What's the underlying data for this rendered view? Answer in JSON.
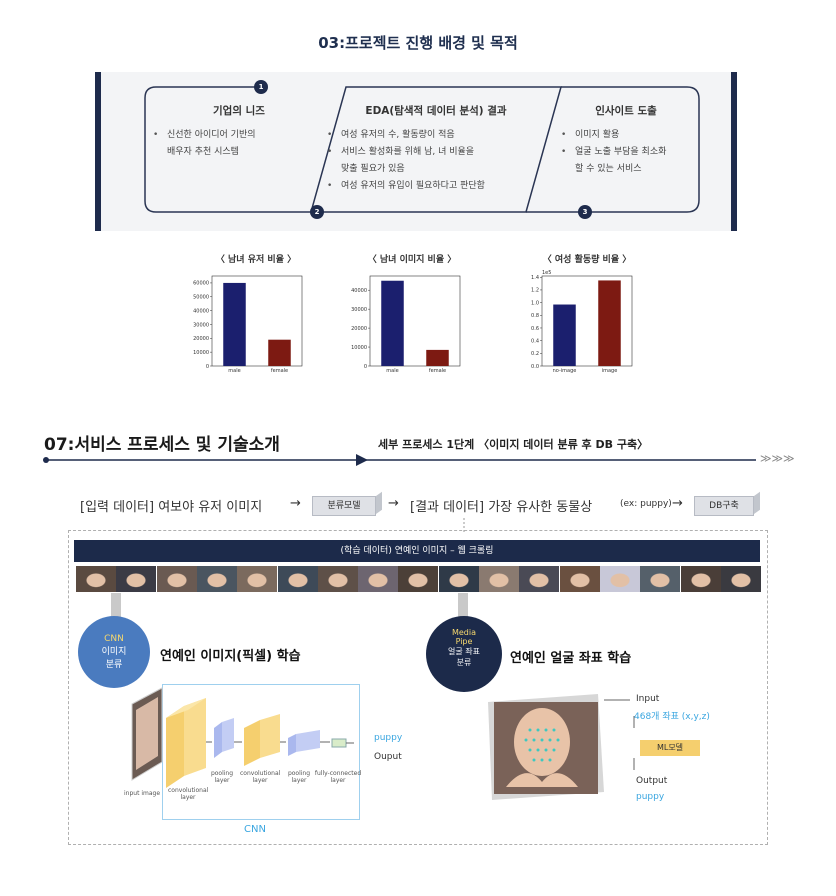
{
  "top_title": "03:프로젝트 진행 배경 및 목적",
  "banner": {
    "steps": [
      {
        "number": "1",
        "title": "기업의 니즈",
        "bullets": [
          "신선한 아이디어 기반의\n배우자 추천 시스템"
        ]
      },
      {
        "number": "2",
        "title": "EDA(탐색적 데이터 분석) 결과",
        "bullets": [
          "여성 유저의 수, 활동량이 적음",
          "서비스 활성화를 위해 남, 녀 비율을\n맞출 필요가 있음",
          "여성 유저의 유입이 필요하다고 판단함"
        ]
      },
      {
        "number": "3",
        "title": "인사이트 도출",
        "bullets": [
          "이미지 활용",
          "얼굴 노출 부담을 최소화\n할 수 있는 서비스"
        ]
      }
    ]
  },
  "chart_data": [
    {
      "type": "bar",
      "title": "〈 남녀 유저 비율 〉",
      "categories": [
        "male",
        "female"
      ],
      "values": [
        60000,
        19000
      ],
      "ylim": [
        0,
        65000
      ],
      "yticks": [
        "0",
        "10000",
        "20000",
        "30000",
        "40000",
        "50000",
        "60000"
      ],
      "ytick_values": [
        0,
        10000,
        20000,
        30000,
        40000,
        50000,
        60000
      ],
      "colors": [
        "#1b1f6e",
        "#7d1a12"
      ]
    },
    {
      "type": "bar",
      "title": "〈 남녀 이미지 비율 〉",
      "categories": [
        "male",
        "female"
      ],
      "values": [
        45000,
        8500
      ],
      "ylim": [
        0,
        47500
      ],
      "yticks": [
        "0",
        "10000",
        "20000",
        "30000",
        "40000"
      ],
      "ytick_values": [
        0,
        10000,
        20000,
        30000,
        40000
      ],
      "colors": [
        "#1b1f6e",
        "#7d1a12"
      ]
    },
    {
      "type": "bar",
      "title": "〈 여성 활동량 비율 〉",
      "categories": [
        "no-image",
        "image"
      ],
      "values": [
        0.97,
        1.35
      ],
      "ylim": [
        0,
        1.42
      ],
      "yticks": [
        "0.0",
        "0.2",
        "0.4",
        "0.6",
        "0.8",
        "1.0",
        "1.2",
        "1.4"
      ],
      "ytick_values": [
        0,
        0.2,
        0.4,
        0.6,
        0.8,
        1.0,
        1.2,
        1.4
      ],
      "offset_label": "1e5",
      "colors": [
        "#1b1f6e",
        "#7d1a12"
      ]
    }
  ],
  "process": {
    "title": "07:서비스 프로세스 및 기술소개",
    "subtitle": "세부 프로세스 1단계 〈이미지 데이터 분류 후 DB 구축〉",
    "arrow_end": "≫≫≫",
    "flow": {
      "input": "[입력 데이터] 여보야 유저 이미지",
      "arrow1": "→",
      "classifier_box": "분류모델",
      "arrow2": "→",
      "output": "[결과 데이터] 가장 유사한 동물상",
      "output_example": "(ex: puppy)",
      "arrow3": "→",
      "db_box": "DB구축"
    },
    "training_bar": "(학습 데이터) 연예인 이미지 – 웹 크롤링",
    "cnn_circle": {
      "line1": "CNN",
      "line2": "이미지",
      "line3": "분류"
    },
    "cnn_heading": "연예인 이미지(픽셀) 학습",
    "mp_circle": {
      "line1": "Media",
      "line2": "Pipe",
      "line3": "얼굴 좌표",
      "line4": "분류"
    },
    "mp_heading": "연예인 얼굴 좌표 학습",
    "cnn_diagram": {
      "input_label": "input image",
      "layers": [
        "convolutional\nlayer",
        "pooling\nlayer",
        "convolutional\nlayer",
        "pooling\nlayer",
        "fully-connected\nlayer"
      ],
      "puppy": "puppy",
      "output": "Ouput",
      "caption": "CNN"
    },
    "mp_diagram": {
      "input_label": "Input",
      "coords": "468개 좌표 (x,y,z)",
      "model_box": "ML모델",
      "output_label": "Output",
      "output_value": "puppy"
    }
  },
  "colors": {
    "navy": "#1e2b4c",
    "male_bar": "#1b1f6e",
    "female_bar": "#7d1a12",
    "accent_blue": "#3aa6e0",
    "yellow": "#f5cf6e"
  }
}
